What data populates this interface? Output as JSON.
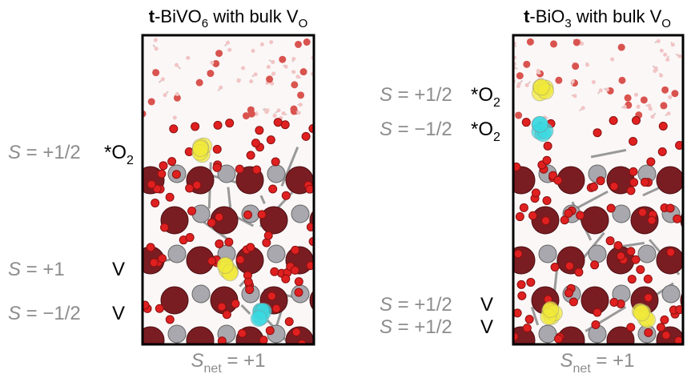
{
  "panels": [
    {
      "title": {
        "bold": "t",
        "text": "-BiVO",
        "sub": "6",
        "text2": " with bulk V",
        "sub2": "O"
      },
      "labels": [
        {
          "symbol": "S",
          "value": " = +1/2",
          "site": "*O",
          "site_sub": "2"
        },
        {
          "symbol": "S",
          "value": " = +1",
          "site": "V"
        },
        {
          "symbol": "S",
          "value": " = −1/2",
          "site": "V"
        }
      ],
      "footer": {
        "symbol": "S",
        "sub": "net",
        "value": " = +1"
      }
    },
    {
      "title": {
        "bold": "t",
        "text": "-BiO",
        "sub": "3",
        "text2": " with bulk V",
        "sub2": "O"
      },
      "labels": [
        {
          "symbol": "S",
          "value": " = +1/2",
          "site": "*O",
          "site_sub": "2"
        },
        {
          "symbol": "S",
          "value": " = −1/2",
          "site": "*O",
          "site_sub": "2"
        },
        {
          "symbol": "S",
          "value": " = +1/2",
          "site": "V"
        },
        {
          "symbol": "S",
          "value": " = +1/2",
          "site": "V"
        }
      ],
      "footer": {
        "symbol": "S",
        "sub": "net",
        "value": " = +1"
      }
    }
  ]
}
